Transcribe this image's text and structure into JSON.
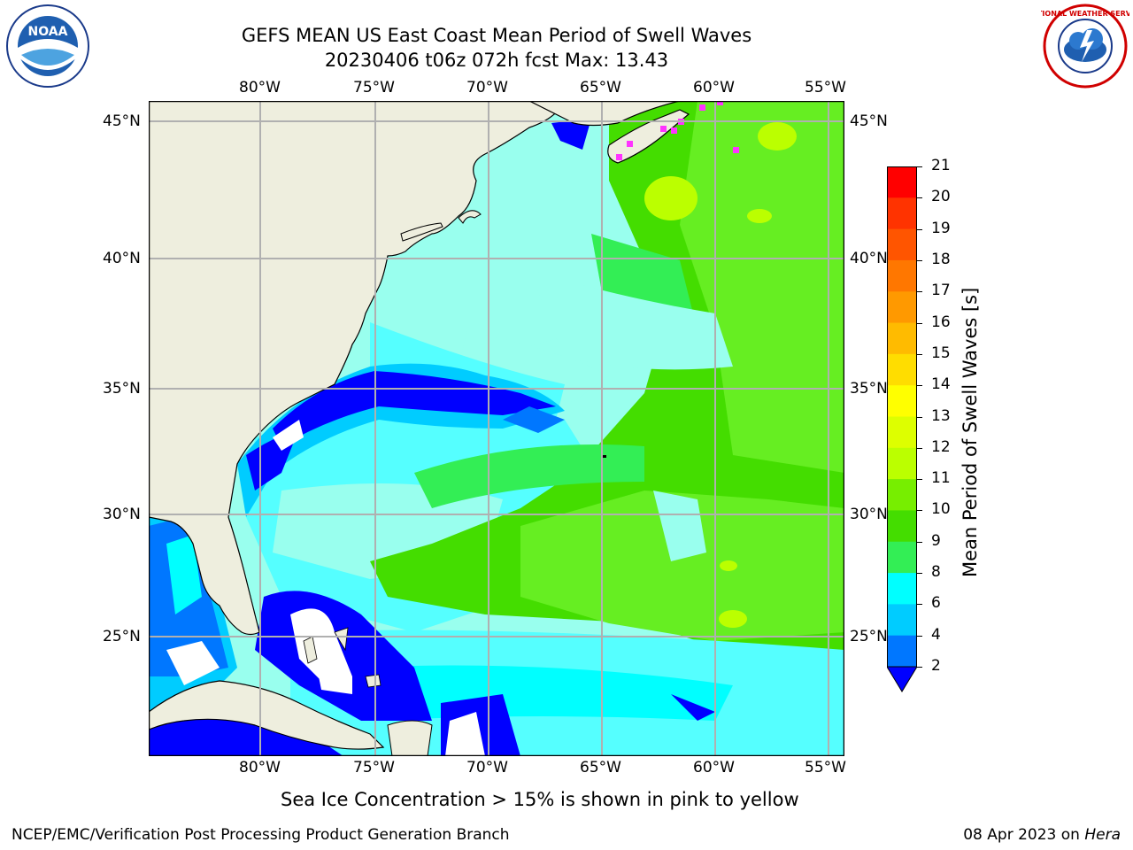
{
  "header": {
    "title_line1": "GEFS MEAN US East Coast Mean Period of Swell Waves",
    "title_line2": "20230406 t06z 072h fcst   Max: 13.43"
  },
  "logos": {
    "left": {
      "icon": "noaa-logo",
      "text": "NOAA"
    },
    "right": {
      "icon": "national-weather-service-logo",
      "text": "NATIONAL WEATHER SERVICE"
    }
  },
  "map": {
    "lon_labels": [
      "80°W",
      "75°W",
      "70°W",
      "65°W",
      "60°W",
      "55°W"
    ],
    "lat_labels": [
      "45°N",
      "40°N",
      "35°N",
      "30°N",
      "25°N"
    ],
    "land_color": "#EEEEDE",
    "grid_color": "#b0b0b0"
  },
  "colorbar": {
    "title": "Mean Period of Swell Waves [s]",
    "ticks": [
      "21",
      "20",
      "19",
      "18",
      "17",
      "16",
      "15",
      "14",
      "13",
      "12",
      "11",
      "10",
      "9",
      "8",
      "6",
      "4",
      "2"
    ],
    "colors_top_to_bottom": [
      "#ff0000",
      "#ff3300",
      "#ff5500",
      "#ff7700",
      "#ff9900",
      "#ffbb00",
      "#ffdd00",
      "#ffff00",
      "#ddff00",
      "#bbff00",
      "#77ee00",
      "#44dd00",
      "#33ee55",
      "#66ff99",
      "#99ffee",
      "#55ffff",
      "#00ffff",
      "#00ccff",
      "#0077ff",
      "#0000ff"
    ]
  },
  "note": "Sea Ice Concentration > 15% is shown in pink to yellow",
  "footer": {
    "left": "NCEP/EMC/Verification Post Processing Product Generation Branch",
    "date": "08 Apr 2023 on ",
    "machine": "Hera"
  }
}
